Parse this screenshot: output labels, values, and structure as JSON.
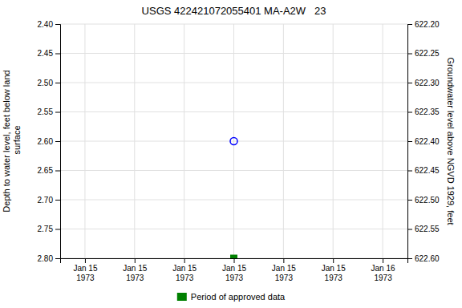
{
  "chart_data": {
    "type": "scatter",
    "title": "USGS 422421072055401 MA-A2W   23",
    "ylabel": "Depth to water level, feet below land\n surface",
    "y2label": "Groundwater level above NGVD 1929, feet",
    "categories": [
      "Jan 15\n1973",
      "Jan 15\n1973",
      "Jan 15\n1973",
      "Jan 15\n1973",
      "Jan 15\n1973",
      "Jan 15\n1973",
      "Jan 16\n1973"
    ],
    "series": [
      {
        "color": "blue",
        "marker": "circle",
        "values": [
          null,
          null,
          null,
          2.6,
          null,
          null,
          null
        ]
      },
      {
        "name": "Period of approved data",
        "color": "#008000",
        "marker": "square",
        "values": [
          null,
          null,
          null,
          2.8,
          null,
          null,
          null
        ]
      }
    ],
    "ylim": [
      2.8,
      2.4
    ],
    "yticks": [
      {
        "value": 2.4,
        "label": "2.40"
      },
      2.45,
      {
        "value": 2.5,
        "label": "2.50"
      },
      2.55,
      {
        "value": 2.6,
        "label": "2.60"
      },
      2.65,
      {
        "value": 2.7,
        "label": "2.70"
      },
      2.75,
      {
        "value": 2.8,
        "label": "2.80"
      }
    ],
    "y2lim": [
      622.6,
      622.2
    ],
    "y2ticks": [
      {
        "value": 622.6,
        "label": "622.60"
      },
      622.55,
      {
        "value": 622.5,
        "label": "622.50"
      },
      622.45,
      {
        "value": 622.4,
        "label": "622.40"
      },
      622.35,
      {
        "value": 622.3,
        "label": "622.30"
      },
      622.25,
      {
        "value": 622.2,
        "label": "622.20"
      }
    ],
    "grid": true,
    "legend": "bottom"
  }
}
